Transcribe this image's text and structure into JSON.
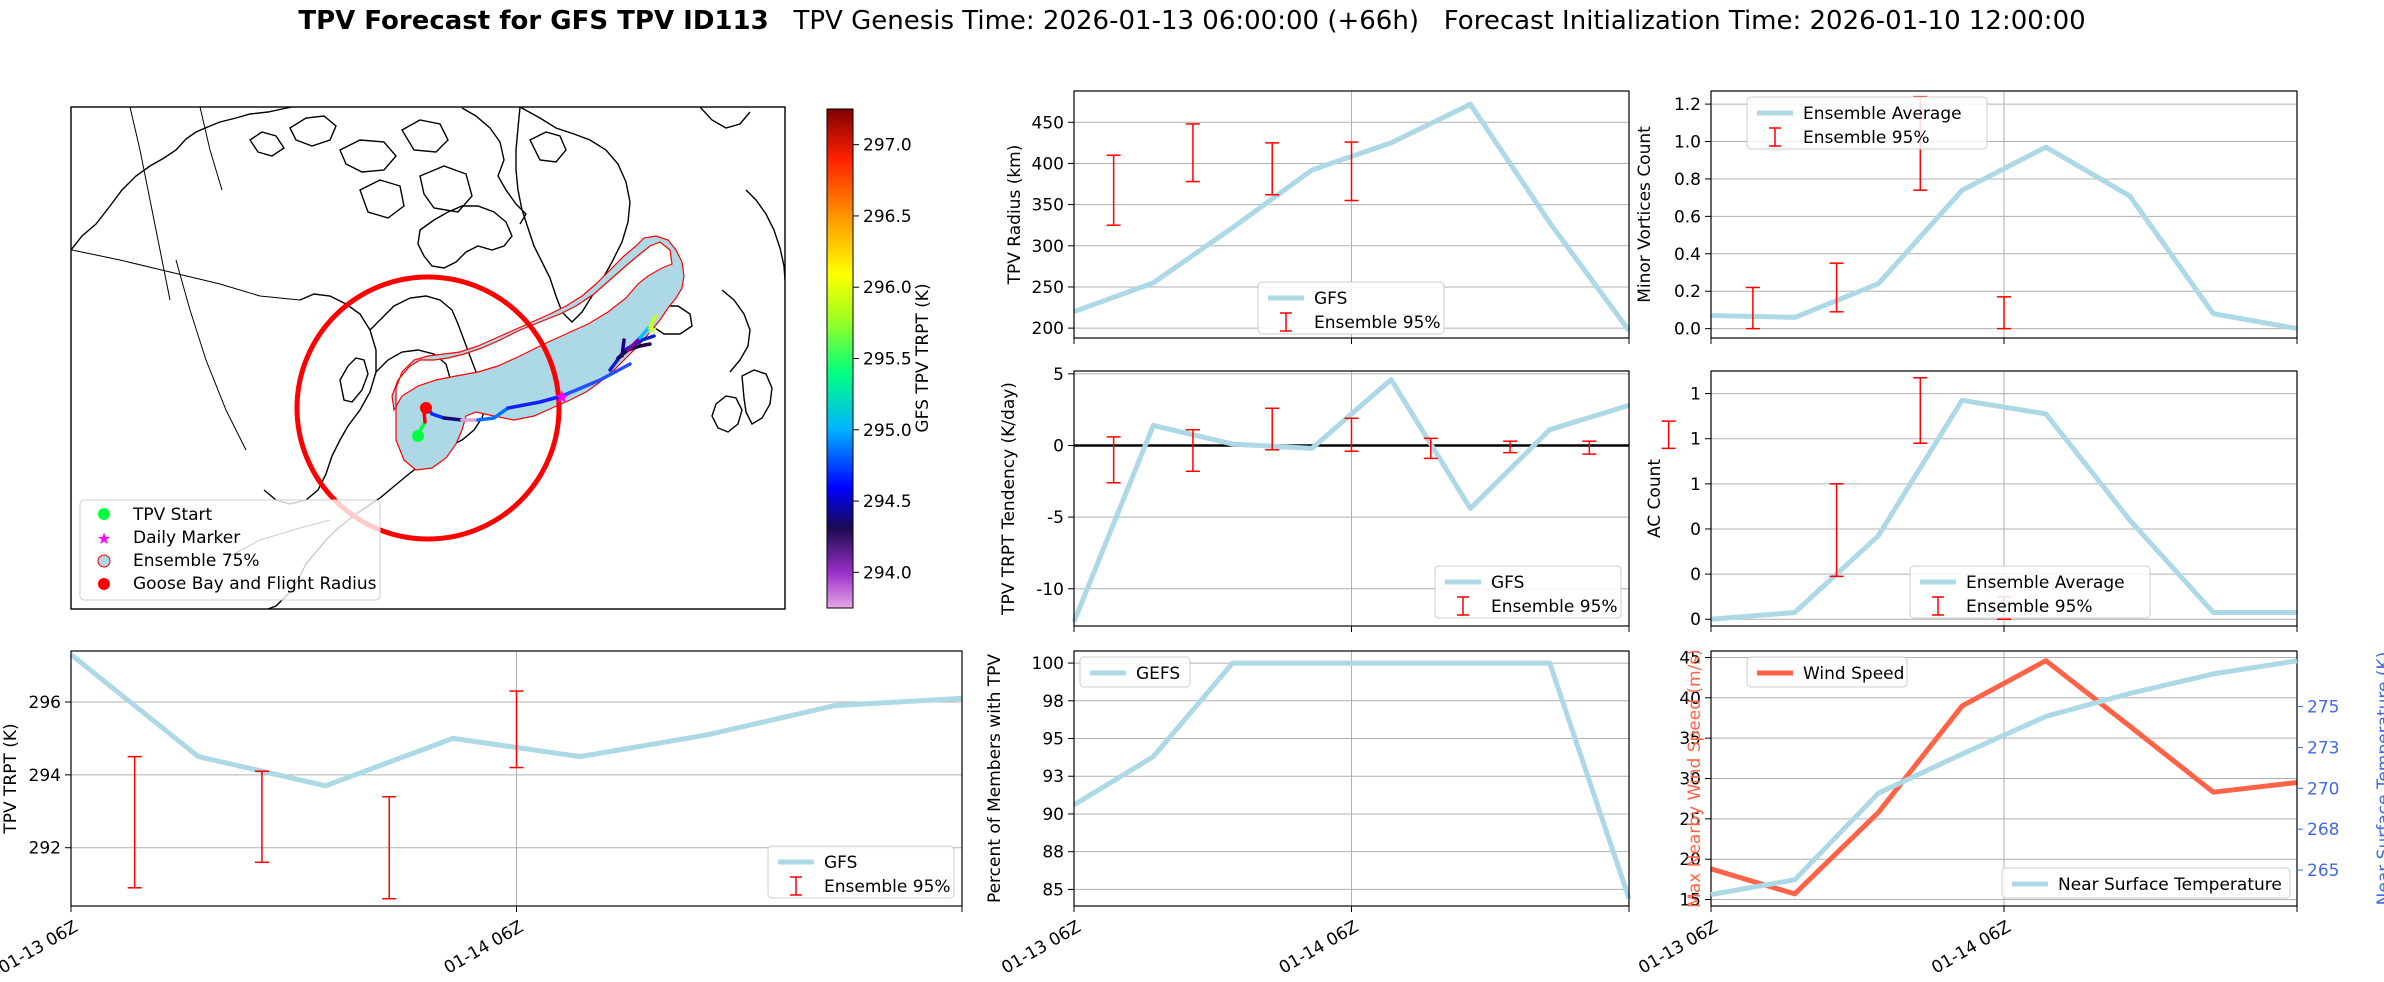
{
  "title": {
    "bold": "TPV Forecast for GFS TPV ID113",
    "genesis": "TPV Genesis Time: 2026-01-13 06:00:00 (+66h)",
    "init": "Forecast Initialization Time: 2026-01-10 12:00:00"
  },
  "colors": {
    "main_line": "#add8e6",
    "error_bars": "#ff0000",
    "wind_line": "#ff6347",
    "temp_axis": "#4169e1",
    "grid": "#b0b0b0",
    "flight_circle": "#ff0000",
    "ensemble_fill": "#add8e6"
  },
  "map": {
    "colorbar_label": "GFS TPV TRPT (K)",
    "colorbar_ticks": [
      "294.0",
      "294.5",
      "295.0",
      "295.5",
      "296.0",
      "296.5",
      "297.0"
    ],
    "colorbar_range": [
      293.75,
      297.25
    ],
    "legend": [
      {
        "label": "TPV Start",
        "icon": "green-dot"
      },
      {
        "label": "Daily Marker",
        "icon": "magenta-star"
      },
      {
        "label": "Ensemble 75%",
        "icon": "lightblue-circle"
      },
      {
        "label": "Goose Bay and Flight Radius",
        "icon": "red-dot"
      }
    ]
  },
  "x_ticks": [
    "01-13 06Z",
    "01-14 06Z"
  ],
  "chart_data": [
    {
      "id": "radius",
      "type": "line",
      "ylabel": "TPV Radius (km)",
      "ylim": [
        188,
        488
      ],
      "yticks": [
        200,
        250,
        300,
        350,
        400,
        450
      ],
      "series": [
        {
          "name": "GFS",
          "values": [
            220,
            255,
            322,
            392,
            425,
            472,
            328,
            197
          ]
        }
      ],
      "errorbars": [
        [
          1,
          325,
          410
        ],
        [
          3,
          378,
          448
        ],
        [
          5,
          362,
          425
        ],
        [
          7,
          355,
          426
        ]
      ],
      "legend": [
        "GFS",
        "Ensemble 95%"
      ]
    },
    {
      "id": "minor",
      "type": "line",
      "ylabel": "Minor Vortices Count",
      "ylim": [
        -0.05,
        1.27
      ],
      "yticks": [
        0.0,
        0.2,
        0.4,
        0.6,
        0.8,
        1.0,
        1.2
      ],
      "series": [
        {
          "name": "Ensemble Average",
          "values": [
            0.07,
            0.06,
            0.24,
            0.74,
            0.97,
            0.71,
            0.08,
            0.0
          ]
        }
      ],
      "errorbars": [
        [
          1,
          0.0,
          0.22
        ],
        [
          3,
          0.09,
          0.35
        ],
        [
          5,
          0.74,
          1.24
        ],
        [
          7,
          0.0,
          0.17
        ]
      ],
      "legend": [
        "Ensemble Average",
        "Ensemble 95%"
      ]
    },
    {
      "id": "tendency",
      "type": "line",
      "ylabel": "TPV TRPT Tendency (K/day)",
      "ylim": [
        -12.6,
        5.2
      ],
      "yticks": [
        -10,
        -5,
        0,
        5
      ],
      "series": [
        {
          "name": "GFS",
          "values": [
            -12.3,
            1.4,
            0.1,
            -0.2,
            4.6,
            -4.4,
            1.1,
            2.8
          ]
        }
      ],
      "errorbars": [
        [
          1,
          -2.6,
          0.6
        ],
        [
          3,
          -1.8,
          1.1
        ],
        [
          5,
          -0.3,
          2.6
        ],
        [
          7,
          -0.4,
          1.9
        ],
        [
          9,
          -0.9,
          0.5
        ],
        [
          11,
          -0.5,
          0.3
        ],
        [
          13,
          -0.6,
          0.3
        ],
        [
          15,
          -0.2,
          1.7
        ]
      ],
      "zero_line": true,
      "legend": [
        "GFS",
        "Ensemble 95%"
      ]
    },
    {
      "id": "ac",
      "type": "line",
      "ylabel": "AC Count",
      "ylim": [
        -0.03,
        1.1
      ],
      "yticks": [
        0.0,
        0.2,
        0.4,
        0.6,
        0.8,
        1.0
      ],
      "series": [
        {
          "name": "Ensemble Average",
          "values": [
            0.0,
            0.03,
            0.37,
            0.97,
            0.91,
            0.44,
            0.03,
            0.03
          ]
        }
      ],
      "errorbars": [
        [
          3,
          0.19,
          0.6
        ],
        [
          5,
          0.78,
          1.07
        ],
        [
          7,
          0.0,
          0.1
        ]
      ],
      "legend": [
        "Ensemble Average",
        "Ensemble 95%"
      ]
    },
    {
      "id": "trpt",
      "type": "line",
      "ylabel": "TPV TRPT (K)",
      "ylim": [
        290.4,
        297.4
      ],
      "yticks": [
        292,
        294,
        296
      ],
      "series": [
        {
          "name": "GFS",
          "values": [
            297.3,
            294.5,
            293.7,
            295.0,
            294.5,
            295.1,
            295.9,
            296.1
          ]
        }
      ],
      "errorbars": [
        [
          1,
          290.9,
          294.5
        ],
        [
          3,
          291.6,
          294.1
        ],
        [
          5,
          290.6,
          293.4
        ],
        [
          7,
          294.2,
          296.3
        ]
      ],
      "legend": [
        "GFS",
        "Ensemble 95%"
      ]
    },
    {
      "id": "percent",
      "type": "line",
      "ylabel": "Percent of Members with TPV",
      "ylim": [
        83.9,
        100.8
      ],
      "yticks": [
        85.0,
        87.5,
        90.0,
        92.5,
        95.0,
        97.5,
        100.0
      ],
      "series": [
        {
          "name": "GEFS",
          "values": [
            90.6,
            93.8,
            100,
            100,
            100,
            100,
            100,
            84.4
          ]
        }
      ],
      "legend": [
        "GEFS"
      ]
    },
    {
      "id": "wind",
      "type": "line",
      "ylabel": "Max Nearby Wind Speed (m/s)",
      "ylim": [
        14.2,
        45.8
      ],
      "yticks": [
        15,
        20,
        25,
        30,
        35,
        40,
        45
      ],
      "series": [
        {
          "name": "Wind Speed",
          "values": [
            18.8,
            15.7,
            25.8,
            39.0,
            44.6,
            36.5,
            28.3,
            29.5
          ]
        }
      ],
      "legend": [
        "Wind Speed"
      ]
    },
    {
      "id": "temp",
      "type": "line",
      "ylabel": "Near Surface Temperature (K)",
      "ylim": [
        262.8,
        278.4
      ],
      "yticks": [
        265.0,
        267.5,
        270.0,
        272.5,
        275.0
      ],
      "series": [
        {
          "name": "Near Surface Temperature",
          "values": [
            263.5,
            264.4,
            269.7,
            272.1,
            274.4,
            275.8,
            277.0,
            277.8
          ]
        }
      ],
      "legend": [
        "Near Surface Temperature"
      ]
    }
  ]
}
